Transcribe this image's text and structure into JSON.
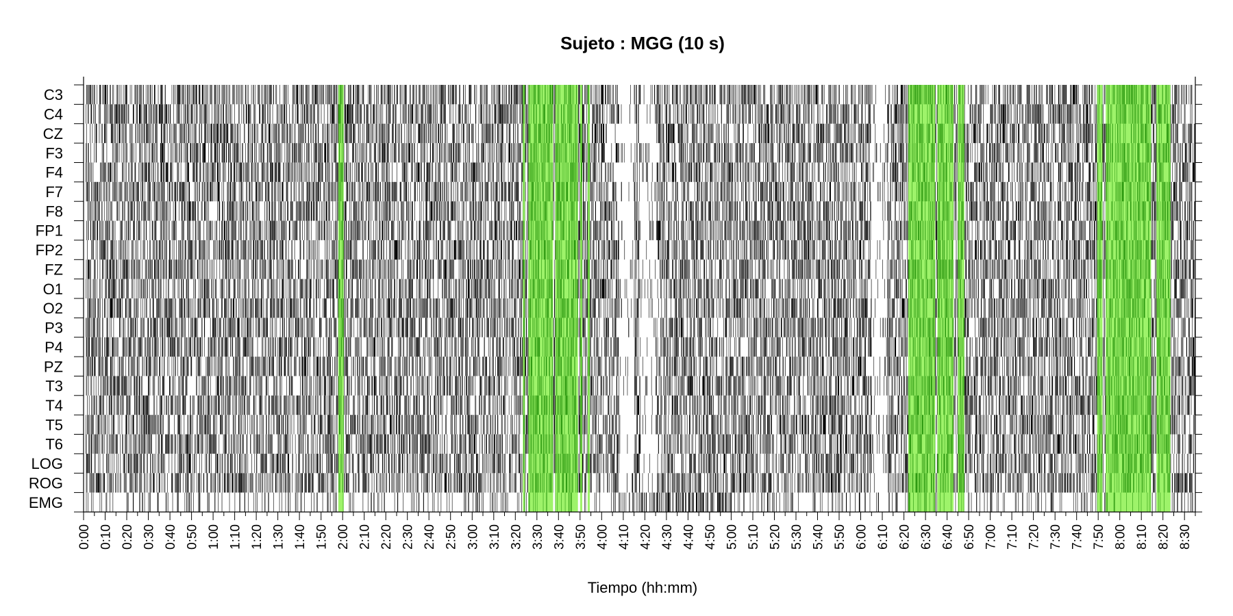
{
  "chart_data": {
    "type": "heatmap",
    "title": "Sujeto : MGG  (10 s)",
    "xlabel": "Tiempo (hh:mm)",
    "ylabel": "",
    "channels": [
      "C3",
      "C4",
      "CZ",
      "F3",
      "F4",
      "F7",
      "F8",
      "FP1",
      "FP2",
      "FZ",
      "O1",
      "O2",
      "P3",
      "P4",
      "PZ",
      "T3",
      "T4",
      "T5",
      "T6",
      "LOG",
      "ROG",
      "EMG"
    ],
    "x_ticks": [
      "0:00",
      "0:10",
      "0:20",
      "0:30",
      "0:40",
      "0:50",
      "1:00",
      "1:10",
      "1:20",
      "1:30",
      "1:40",
      "1:50",
      "2:00",
      "2:10",
      "2:20",
      "2:30",
      "2:40",
      "2:50",
      "3:00",
      "3:10",
      "3:20",
      "3:30",
      "3:40",
      "3:50",
      "4:00",
      "4:10",
      "4:20",
      "4:30",
      "4:40",
      "4:50",
      "5:00",
      "5:10",
      "5:20",
      "5:30",
      "5:40",
      "5:50",
      "6:00",
      "6:10",
      "6:20",
      "6:30",
      "6:40",
      "6:50",
      "7:00",
      "7:10",
      "7:20",
      "7:30",
      "7:40",
      "7:50",
      "8:00",
      "8:10",
      "8:20",
      "8:30"
    ],
    "x_range_minutes": [
      0,
      515
    ],
    "epoch_seconds": 10,
    "highlight_color": "#9ef36a",
    "highlight_dark_color": "#2e9a12",
    "mark_color": "#000000",
    "highlight_intervals_minutes": [
      [
        118,
        120.5
      ],
      [
        203.5,
        204.5
      ],
      [
        206,
        217.5
      ],
      [
        218.5,
        229
      ],
      [
        230,
        231
      ],
      [
        233.5,
        234.5
      ],
      [
        382,
        394.5
      ],
      [
        395.5,
        403
      ],
      [
        405,
        408
      ],
      [
        469.5,
        472
      ],
      [
        473.5,
        494.5
      ],
      [
        497,
        503.5
      ]
    ],
    "sparse_intervals_minutes": [
      [
        248,
        255
      ],
      [
        258,
        265
      ],
      [
        365,
        372
      ]
    ]
  }
}
